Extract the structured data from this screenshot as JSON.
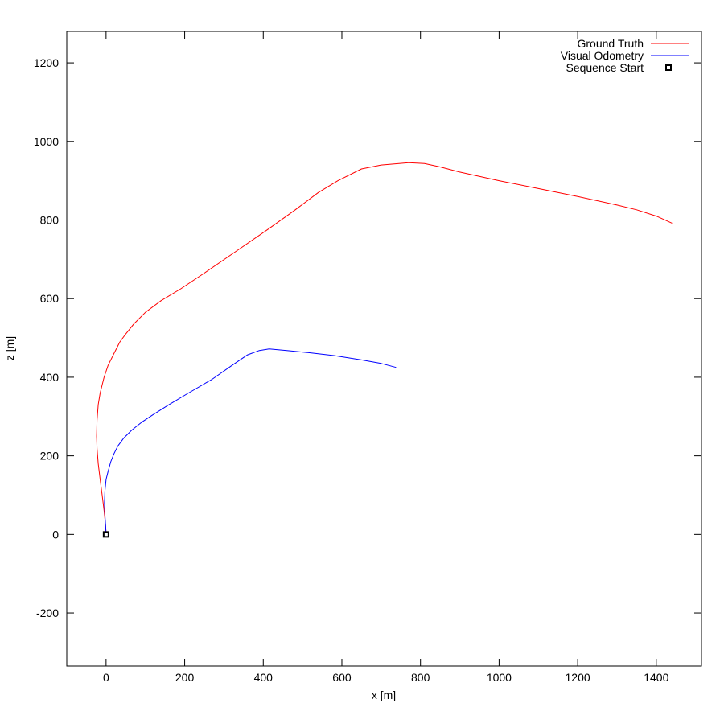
{
  "chart_data": {
    "type": "line",
    "xlabel": "x [m]",
    "ylabel": "z [m]",
    "xlim": [
      -100,
      1515
    ],
    "ylim": [
      -335,
      1280
    ],
    "xticks": [
      0,
      200,
      400,
      600,
      800,
      1000,
      1200,
      1400
    ],
    "yticks": [
      -200,
      0,
      200,
      400,
      600,
      800,
      1000,
      1200
    ],
    "grid": false,
    "legend_position": "top-right",
    "series": [
      {
        "name": "Ground Truth",
        "color": "#ff0000",
        "points": [
          [
            0,
            0
          ],
          [
            -2,
            30
          ],
          [
            -5,
            60
          ],
          [
            -10,
            100
          ],
          [
            -15,
            140
          ],
          [
            -20,
            180
          ],
          [
            -23,
            220
          ],
          [
            -24,
            250
          ],
          [
            -23,
            290
          ],
          [
            -20,
            330
          ],
          [
            -15,
            360
          ],
          [
            -5,
            400
          ],
          [
            5,
            430
          ],
          [
            20,
            460
          ],
          [
            35,
            490
          ],
          [
            50,
            510
          ],
          [
            70,
            535
          ],
          [
            100,
            565
          ],
          [
            140,
            595
          ],
          [
            190,
            625
          ],
          [
            250,
            665
          ],
          [
            330,
            720
          ],
          [
            410,
            775
          ],
          [
            480,
            825
          ],
          [
            540,
            870
          ],
          [
            590,
            900
          ],
          [
            650,
            930
          ],
          [
            700,
            940
          ],
          [
            770,
            946
          ],
          [
            810,
            944
          ],
          [
            850,
            935
          ],
          [
            900,
            922
          ],
          [
            1000,
            900
          ],
          [
            1100,
            880
          ],
          [
            1200,
            860
          ],
          [
            1300,
            838
          ],
          [
            1350,
            826
          ],
          [
            1400,
            810
          ],
          [
            1440,
            792
          ]
        ]
      },
      {
        "name": "Visual Odometry",
        "color": "#0000ff",
        "points": [
          [
            0,
            0
          ],
          [
            -1,
            20
          ],
          [
            -3,
            50
          ],
          [
            -4,
            80
          ],
          [
            -3,
            110
          ],
          [
            0,
            140
          ],
          [
            5,
            160
          ],
          [
            12,
            185
          ],
          [
            20,
            205
          ],
          [
            30,
            225
          ],
          [
            45,
            245
          ],
          [
            65,
            265
          ],
          [
            90,
            285
          ],
          [
            120,
            305
          ],
          [
            160,
            330
          ],
          [
            210,
            360
          ],
          [
            270,
            395
          ],
          [
            320,
            430
          ],
          [
            360,
            457
          ],
          [
            390,
            468
          ],
          [
            415,
            472
          ],
          [
            460,
            468
          ],
          [
            520,
            462
          ],
          [
            580,
            455
          ],
          [
            650,
            444
          ],
          [
            700,
            435
          ],
          [
            738,
            425
          ]
        ]
      },
      {
        "name": "Sequence Start",
        "type": "scatter",
        "marker": "square",
        "color": "#000000",
        "points": [
          [
            0,
            0
          ]
        ]
      }
    ]
  }
}
